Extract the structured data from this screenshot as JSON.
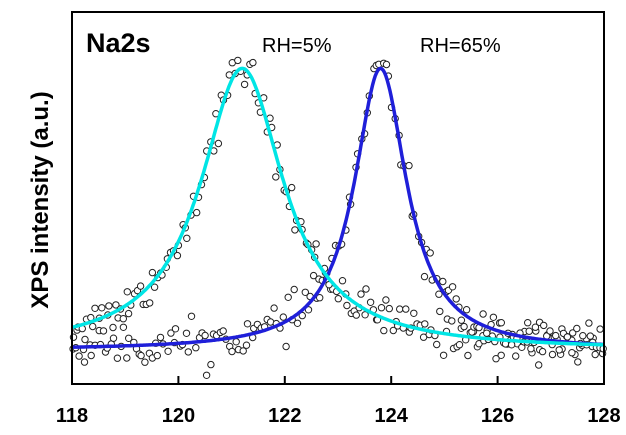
{
  "chart_data": {
    "type": "scatter",
    "title": "Na2s",
    "xlabel": "",
    "ylabel": "XPS intensity (a.u.)",
    "xlim": [
      118,
      128
    ],
    "ylim": [
      -0.12,
      1.2
    ],
    "x_ticks": [
      "118",
      "120",
      "122",
      "124",
      "126",
      "128"
    ],
    "grid": false,
    "annotations": [
      "RH=5%",
      "RH=65%"
    ],
    "series": [
      {
        "name": "RH=5%",
        "color": "#00e5e5",
        "fit": {
          "center": 121.2,
          "amplitude": 1.0,
          "fwhm": 1.9,
          "baseline": 0.0
        },
        "points": {
          "count": 190,
          "noise": 0.035
        }
      },
      {
        "name": "RH=65%",
        "color": "#1f1fd9",
        "fit": {
          "center": 123.8,
          "amplitude": 1.0,
          "fwhm": 1.2,
          "baseline": 0.0
        },
        "points": {
          "count": 170,
          "noise": 0.035
        }
      }
    ]
  }
}
